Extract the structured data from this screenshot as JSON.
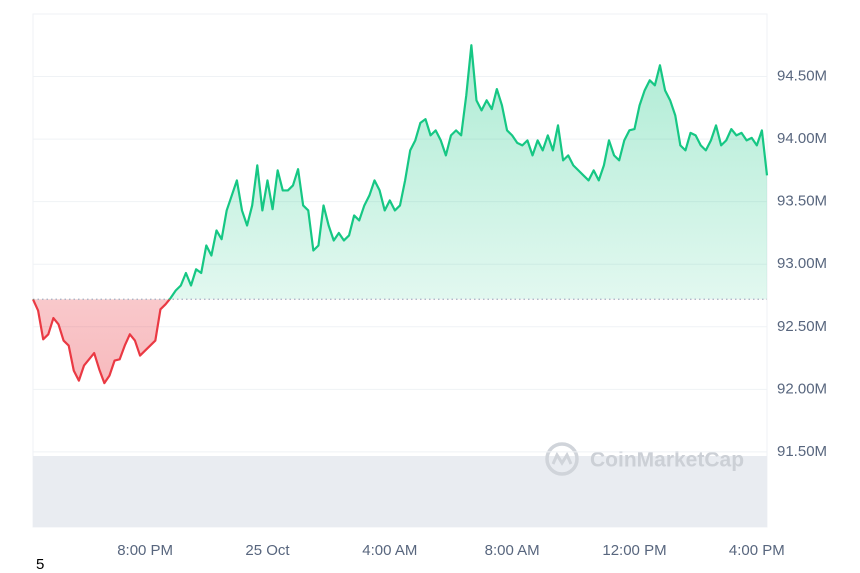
{
  "chart_data": {
    "type": "line",
    "categories": [
      null,
      null,
      null,
      null,
      null,
      null,
      null,
      null,
      null,
      null,
      null,
      null,
      null,
      null,
      null,
      null,
      null,
      null,
      null,
      null,
      null,
      null,
      "8:00 PM",
      null,
      null,
      null,
      null,
      null,
      null,
      null,
      null,
      null,
      null,
      null,
      null,
      null,
      null,
      null,
      null,
      null,
      null,
      null,
      null,
      null,
      null,
      null,
      "25 Oct",
      null,
      null,
      null,
      null,
      null,
      null,
      null,
      null,
      null,
      null,
      null,
      null,
      null,
      null,
      null,
      null,
      null,
      null,
      null,
      null,
      null,
      null,
      null,
      "4:00 AM",
      null,
      null,
      null,
      null,
      null,
      null,
      null,
      null,
      null,
      null,
      null,
      null,
      null,
      null,
      null,
      null,
      null,
      null,
      null,
      null,
      null,
      null,
      null,
      "8:00 AM",
      null,
      null,
      null,
      null,
      null,
      null,
      null,
      null,
      null,
      null,
      null,
      null,
      null,
      null,
      null,
      null,
      null,
      null,
      null,
      null,
      null,
      null,
      null,
      "12:00 PM",
      null,
      null,
      null,
      null,
      null,
      null,
      null,
      null,
      null,
      null,
      null,
      null,
      null,
      null,
      null,
      null,
      null,
      null,
      null,
      null,
      null,
      null,
      null,
      "4:00 PM",
      null,
      null
    ],
    "values": [
      92.72,
      92.63,
      92.4,
      92.44,
      92.57,
      92.52,
      92.39,
      92.35,
      92.15,
      92.07,
      92.19,
      92.24,
      92.29,
      92.16,
      92.05,
      92.11,
      92.23,
      92.24,
      92.35,
      92.44,
      92.39,
      92.27,
      92.31,
      92.35,
      92.39,
      92.64,
      92.68,
      92.73,
      92.79,
      92.83,
      92.93,
      92.83,
      92.96,
      92.93,
      93.15,
      93.07,
      93.27,
      93.2,
      93.43,
      93.55,
      93.67,
      93.43,
      93.31,
      93.47,
      93.79,
      93.43,
      93.67,
      93.44,
      93.75,
      93.59,
      93.59,
      93.63,
      93.76,
      93.47,
      93.43,
      93.11,
      93.15,
      93.47,
      93.31,
      93.19,
      93.25,
      93.19,
      93.23,
      93.39,
      93.35,
      93.47,
      93.55,
      93.67,
      93.59,
      93.43,
      93.51,
      93.43,
      93.47,
      93.67,
      93.91,
      93.99,
      94.13,
      94.16,
      94.03,
      94.07,
      93.99,
      93.87,
      94.03,
      94.07,
      94.03,
      94.35,
      94.75,
      94.31,
      94.23,
      94.31,
      94.24,
      94.4,
      94.27,
      94.07,
      94.03,
      93.97,
      93.95,
      93.99,
      93.87,
      93.99,
      93.91,
      94.03,
      93.91,
      94.11,
      93.83,
      93.87,
      93.79,
      93.75,
      93.71,
      93.67,
      93.75,
      93.67,
      93.79,
      93.99,
      93.87,
      93.83,
      93.99,
      94.07,
      94.08,
      94.27,
      94.39,
      94.47,
      94.43,
      94.59,
      94.39,
      94.31,
      94.19,
      93.95,
      93.91,
      94.05,
      94.03,
      93.95,
      93.91,
      93.99,
      94.11,
      93.95,
      93.99,
      94.08,
      94.03,
      94.05,
      93.99,
      94.01,
      93.95,
      94.07,
      93.71
    ],
    "baseline": 92.72,
    "up_color": "#16c784",
    "down_color": "#ea3943",
    "ylim": [
      90.9,
      95.0
    ],
    "yticks": [
      {
        "value": 91.5,
        "label": "91.50M"
      },
      {
        "value": 92.0,
        "label": "92.00M"
      },
      {
        "value": 92.5,
        "label": "92.50M"
      },
      {
        "value": 93.0,
        "label": "93.00M"
      },
      {
        "value": 93.5,
        "label": "93.50M"
      },
      {
        "value": 94.0,
        "label": "94.00M"
      },
      {
        "value": 94.5,
        "label": "94.50M"
      }
    ],
    "grid": true,
    "watermark": "CoinMarketCap",
    "footer_note": "5"
  }
}
